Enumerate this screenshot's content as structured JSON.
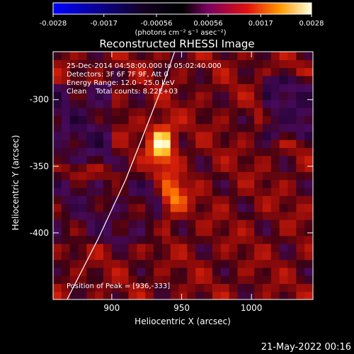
{
  "chart_data": {
    "type": "heatmap",
    "title": "Reconstructed RHESSI Image",
    "xlabel": "Heliocentric X (arcsec)",
    "ylabel": "Heliocentric Y (arcsec)",
    "xlim": [
      858,
      1044
    ],
    "ylim": [
      -450,
      -264
    ],
    "x_ticks": [
      "900",
      "950",
      "1000"
    ],
    "x_tick_values": [
      900,
      950,
      1000
    ],
    "y_ticks": [
      "-300",
      "-350",
      "-400"
    ],
    "y_tick_values": [
      -300,
      -350,
      -400
    ],
    "colorbar": {
      "min": -0.0028,
      "max": 0.0028,
      "tick_labels": [
        "-0.0028",
        "-0.0017",
        "-0.00056",
        "0.00056",
        "0.0017",
        "0.0028"
      ],
      "tick_values": [
        -0.0028,
        -0.0017,
        -0.00056,
        0.00056,
        0.0017,
        0.0028
      ],
      "unit_label": "(photons cm⁻² s⁻¹ asec⁻²)"
    },
    "annotations": [
      "25-Dec-2014 04:58:00.000 to 05:02:40.000",
      "Detectors: 3F 6F 7F 9F, Att 0",
      "Energy Range: 12.0 - 25.0 keV",
      "Clean    Total counts: 8.22E+03"
    ],
    "peak_label": "Position of Peak = [936,-333]",
    "peak": {
      "x": 936,
      "y": -333
    },
    "sources": [
      {
        "x": 936,
        "y": -333,
        "intensity": 0.0028
      },
      {
        "x": 944,
        "y": -372,
        "intensity": 0.0017
      }
    ],
    "limb_curve": [
      [
        868,
        -450
      ],
      [
        890,
        -405
      ],
      [
        910,
        -360
      ],
      [
        925,
        -320
      ],
      [
        938,
        -285
      ],
      [
        945,
        -264
      ]
    ],
    "colormap": [
      "#0000ff",
      "#000000",
      "#5a0a8a",
      "#d00010",
      "#ff8800",
      "#ffff80",
      "#ffffff"
    ]
  },
  "footer": {
    "timestamp": "21-May-2022 00:16"
  }
}
